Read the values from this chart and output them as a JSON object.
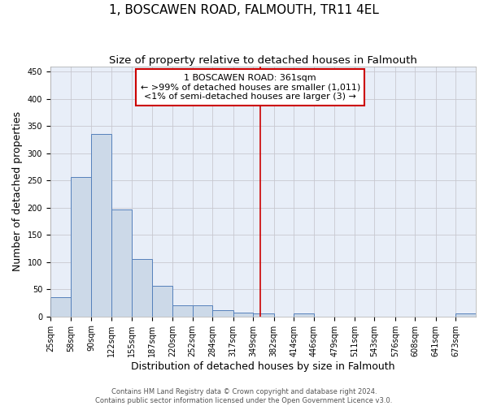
{
  "title": "1, BOSCAWEN ROAD, FALMOUTH, TR11 4EL",
  "subtitle": "Size of property relative to detached houses in Falmouth",
  "xlabel": "Distribution of detached houses by size in Falmouth",
  "ylabel": "Number of detached properties",
  "bar_color": "#ccd9e8",
  "bar_edge_color": "#5580bb",
  "bg_color": "#e8eef8",
  "grid_color": "#c8c8d0",
  "bin_edges": [
    25,
    58,
    90,
    122,
    155,
    187,
    220,
    252,
    284,
    317,
    349,
    382,
    414,
    446,
    479,
    511,
    543,
    576,
    608,
    641,
    673,
    705
  ],
  "bar_heights": [
    35,
    257,
    335,
    197,
    105,
    57,
    21,
    21,
    11,
    7,
    5,
    0,
    5,
    0,
    0,
    0,
    0,
    0,
    0,
    0,
    5
  ],
  "tick_labels": [
    "25sqm",
    "58sqm",
    "90sqm",
    "122sqm",
    "155sqm",
    "187sqm",
    "220sqm",
    "252sqm",
    "284sqm",
    "317sqm",
    "349sqm",
    "382sqm",
    "414sqm",
    "446sqm",
    "479sqm",
    "511sqm",
    "543sqm",
    "576sqm",
    "608sqm",
    "641sqm",
    "673sqm"
  ],
  "vline_x": 361,
  "vline_color": "#cc0000",
  "annotation_line1": "1 BOSCAWEN ROAD: 361sqm",
  "annotation_line2": "← >99% of detached houses are smaller (1,011)",
  "annotation_line3": "<1% of semi-detached houses are larger (3) →",
  "annotation_box_color": "#ffffff",
  "annotation_border_color": "#cc0000",
  "ylim": [
    0,
    460
  ],
  "yticks": [
    0,
    50,
    100,
    150,
    200,
    250,
    300,
    350,
    400,
    450
  ],
  "footnote": "Contains HM Land Registry data © Crown copyright and database right 2024.\nContains public sector information licensed under the Open Government Licence v3.0.",
  "title_fontsize": 11,
  "subtitle_fontsize": 9.5,
  "label_fontsize": 9,
  "tick_fontsize": 7,
  "annotation_fontsize": 8,
  "footnote_fontsize": 6
}
